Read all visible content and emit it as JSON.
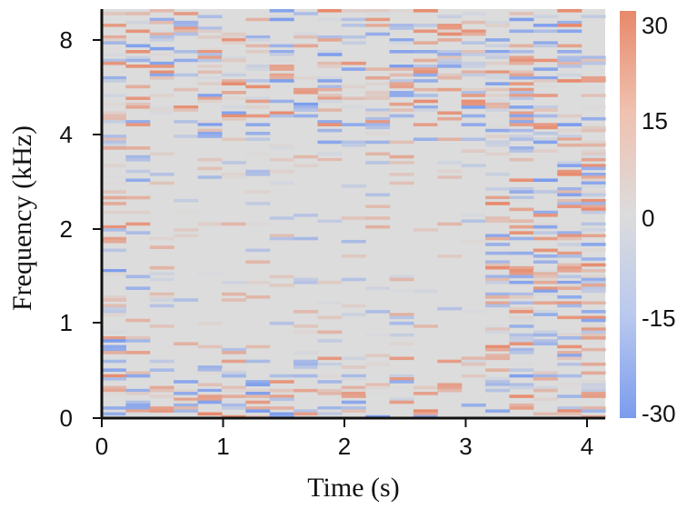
{
  "chart_data": {
    "type": "heatmap",
    "title": "",
    "xlabel": "Time (s)",
    "ylabel": "Frequency (kHz)",
    "x_ticks": [
      "0",
      "1",
      "2",
      "3",
      "4"
    ],
    "x_tick_values": [
      0,
      1,
      2,
      3,
      4
    ],
    "xlim": [
      0,
      4.15
    ],
    "y_ticks": [
      "0",
      "1",
      "2",
      "4",
      "8"
    ],
    "y_tick_values": [
      0,
      1,
      2,
      4,
      8
    ],
    "y_scale": "log",
    "ylim": [
      0,
      8.8
    ],
    "colorbar": {
      "ticks": [
        "30",
        "15",
        "0",
        "-15",
        "-30"
      ],
      "values": [
        30,
        15,
        0,
        -15,
        -30
      ],
      "range": [
        -30,
        30
      ],
      "colors": {
        "high": "#e8896b",
        "mid": "#dcdcdc",
        "low": "#7b9cee"
      }
    },
    "n_time_columns": 21,
    "n_frequency_rows": 140
  }
}
